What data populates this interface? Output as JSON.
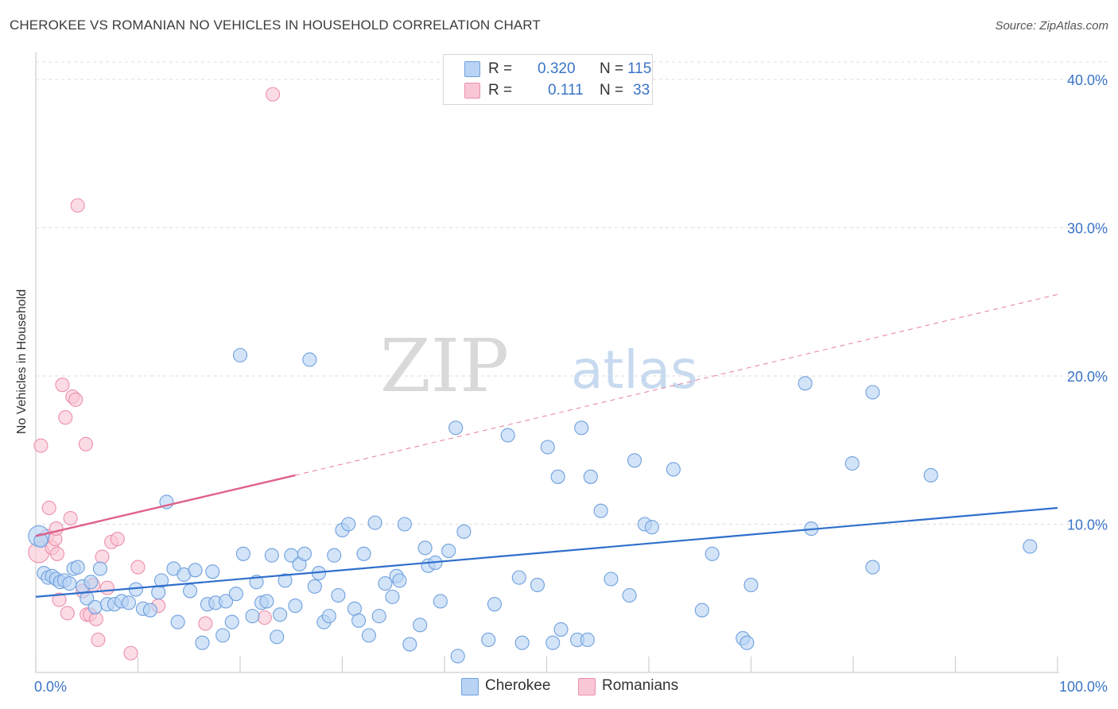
{
  "title": "CHEROKEE VS ROMANIAN NO VEHICLES IN HOUSEHOLD CORRELATION CHART",
  "source": "Source: ZipAtlas.com",
  "watermark": {
    "zip": "ZIP",
    "atlas": "atlas"
  },
  "legend": {
    "r_label": "R =",
    "n_label": "N =",
    "cherokee": {
      "r": "0.320",
      "n": "115"
    },
    "romanians": {
      "r": "0.111",
      "n": "33"
    }
  },
  "bottom_legend": {
    "cherokee": "Cherokee",
    "romanians": "Romanians"
  },
  "colors": {
    "cherokee_fill": "#b8d3f3",
    "cherokee_stroke": "#6fa0de",
    "cherokee_line": "#2f6fcc",
    "romanian_fill": "#f9c6d5",
    "romanian_stroke": "#ec8fab",
    "romanian_line": "#e0608a",
    "tick_label": "#3b74c7",
    "grid": "#dddddd"
  },
  "chart_data": {
    "type": "scatter",
    "title": "CHEROKEE VS ROMANIAN NO VEHICLES IN HOUSEHOLD CORRELATION CHART",
    "xlabel": "",
    "ylabel": "No Vehicles in Household",
    "xlim": [
      0,
      100
    ],
    "ylim": [
      0,
      41.5
    ],
    "x_tick_labels": [
      {
        "value": 0,
        "label": "0.0%"
      },
      {
        "value": 100,
        "label": "100.0%"
      }
    ],
    "y_tick_labels": [
      {
        "value": 10,
        "label": "10.0%"
      },
      {
        "value": 20,
        "label": "20.0%"
      },
      {
        "value": 30,
        "label": "30.0%"
      },
      {
        "value": 40,
        "label": "40.0%"
      }
    ],
    "x_minor_ticks": [
      0,
      10,
      20,
      30,
      40,
      50,
      60,
      70,
      80,
      90,
      100
    ],
    "grid": true,
    "legend_position": "top-center",
    "series": [
      {
        "name": "Cherokee",
        "points": [
          [
            0.3,
            9.2
          ],
          [
            0.5,
            8.9
          ],
          [
            0.8,
            6.7
          ],
          [
            1.2,
            6.4
          ],
          [
            1.6,
            6.5
          ],
          [
            2.0,
            6.3
          ],
          [
            2.4,
            6.1
          ],
          [
            2.8,
            6.2
          ],
          [
            3.3,
            6.0
          ],
          [
            3.7,
            7.0
          ],
          [
            4.1,
            7.1
          ],
          [
            4.6,
            5.8
          ],
          [
            5.0,
            5.0
          ],
          [
            5.4,
            6.1
          ],
          [
            5.8,
            4.4
          ],
          [
            6.3,
            7.0
          ],
          [
            7.0,
            4.6
          ],
          [
            7.7,
            4.6
          ],
          [
            8.4,
            4.8
          ],
          [
            9.1,
            4.7
          ],
          [
            9.8,
            5.6
          ],
          [
            10.5,
            4.3
          ],
          [
            11.2,
            4.2
          ],
          [
            12.0,
            5.4
          ],
          [
            12.3,
            6.2
          ],
          [
            12.8,
            11.5
          ],
          [
            13.5,
            7.0
          ],
          [
            13.9,
            3.4
          ],
          [
            14.5,
            6.6
          ],
          [
            15.1,
            5.5
          ],
          [
            15.6,
            6.9
          ],
          [
            16.3,
            2.0
          ],
          [
            16.8,
            4.6
          ],
          [
            17.3,
            6.8
          ],
          [
            17.6,
            4.7
          ],
          [
            18.3,
            2.5
          ],
          [
            18.6,
            4.8
          ],
          [
            19.2,
            3.4
          ],
          [
            19.6,
            5.3
          ],
          [
            20.0,
            21.4
          ],
          [
            20.3,
            8.0
          ],
          [
            21.2,
            3.8
          ],
          [
            21.6,
            6.1
          ],
          [
            22.1,
            4.7
          ],
          [
            22.6,
            4.8
          ],
          [
            23.1,
            7.9
          ],
          [
            23.6,
            2.4
          ],
          [
            23.9,
            3.9
          ],
          [
            24.4,
            6.2
          ],
          [
            25.0,
            7.9
          ],
          [
            25.4,
            4.5
          ],
          [
            25.8,
            7.3
          ],
          [
            26.3,
            8.0
          ],
          [
            26.8,
            21.1
          ],
          [
            27.3,
            5.8
          ],
          [
            27.7,
            6.7
          ],
          [
            28.2,
            3.4
          ],
          [
            28.7,
            3.8
          ],
          [
            29.2,
            7.9
          ],
          [
            29.6,
            5.2
          ],
          [
            30.0,
            9.6
          ],
          [
            30.6,
            10.0
          ],
          [
            31.2,
            4.3
          ],
          [
            31.6,
            3.5
          ],
          [
            32.1,
            8.0
          ],
          [
            32.6,
            2.5
          ],
          [
            33.2,
            10.1
          ],
          [
            33.6,
            3.8
          ],
          [
            34.2,
            6.0
          ],
          [
            34.9,
            5.1
          ],
          [
            35.3,
            6.5
          ],
          [
            35.6,
            6.2
          ],
          [
            36.1,
            10.0
          ],
          [
            36.6,
            1.9
          ],
          [
            37.6,
            3.2
          ],
          [
            38.1,
            8.4
          ],
          [
            38.4,
            7.2
          ],
          [
            39.1,
            7.4
          ],
          [
            39.6,
            4.8
          ],
          [
            40.4,
            8.2
          ],
          [
            41.1,
            16.5
          ],
          [
            41.3,
            1.1
          ],
          [
            41.9,
            9.5
          ],
          [
            44.3,
            2.2
          ],
          [
            44.9,
            4.6
          ],
          [
            46.2,
            16.0
          ],
          [
            47.3,
            6.4
          ],
          [
            47.6,
            2.0
          ],
          [
            49.1,
            5.9
          ],
          [
            50.1,
            15.2
          ],
          [
            50.6,
            2.0
          ],
          [
            51.1,
            13.2
          ],
          [
            51.4,
            2.9
          ],
          [
            53.0,
            2.2
          ],
          [
            53.4,
            16.5
          ],
          [
            54.0,
            2.2
          ],
          [
            54.3,
            13.2
          ],
          [
            55.3,
            10.9
          ],
          [
            56.3,
            6.3
          ],
          [
            58.1,
            5.2
          ],
          [
            58.6,
            14.3
          ],
          [
            59.6,
            10.0
          ],
          [
            60.3,
            9.8
          ],
          [
            62.4,
            13.7
          ],
          [
            65.2,
            4.2
          ],
          [
            66.2,
            8.0
          ],
          [
            69.2,
            2.3
          ],
          [
            69.6,
            2.0
          ],
          [
            70.0,
            5.9
          ],
          [
            75.3,
            19.5
          ],
          [
            75.9,
            9.7
          ],
          [
            79.9,
            14.1
          ],
          [
            81.9,
            7.1
          ],
          [
            81.9,
            18.9
          ],
          [
            87.6,
            13.3
          ],
          [
            97.3,
            8.5
          ]
        ],
        "trend": {
          "x": [
            0,
            100
          ],
          "y": [
            5.1,
            11.1
          ]
        }
      },
      {
        "name": "Romanians",
        "points": [
          [
            0.3,
            8.1
          ],
          [
            0.5,
            15.3
          ],
          [
            1.1,
            9.2
          ],
          [
            1.3,
            11.1
          ],
          [
            1.6,
            8.4
          ],
          [
            1.9,
            9.0
          ],
          [
            2.0,
            9.7
          ],
          [
            2.1,
            8.0
          ],
          [
            2.3,
            4.9
          ],
          [
            2.6,
            19.4
          ],
          [
            2.9,
            17.2
          ],
          [
            3.1,
            4.0
          ],
          [
            3.4,
            10.4
          ],
          [
            3.6,
            18.6
          ],
          [
            3.9,
            18.4
          ],
          [
            4.1,
            31.5
          ],
          [
            4.6,
            5.5
          ],
          [
            4.9,
            15.4
          ],
          [
            5.0,
            3.9
          ],
          [
            5.3,
            3.9
          ],
          [
            5.6,
            5.9
          ],
          [
            5.9,
            3.6
          ],
          [
            6.1,
            2.2
          ],
          [
            6.5,
            7.8
          ],
          [
            7.0,
            5.7
          ],
          [
            7.4,
            8.8
          ],
          [
            8.0,
            9.0
          ],
          [
            9.3,
            1.3
          ],
          [
            10.0,
            7.1
          ],
          [
            12.0,
            4.5
          ],
          [
            16.6,
            3.3
          ],
          [
            22.4,
            3.7
          ],
          [
            23.2,
            39.0
          ]
        ],
        "trend": {
          "x": [
            0,
            25.4
          ],
          "y": [
            9.2,
            13.3
          ]
        },
        "trend_extension": {
          "x": [
            25.4,
            100
          ],
          "y": [
            13.3,
            25.5
          ]
        }
      }
    ]
  }
}
